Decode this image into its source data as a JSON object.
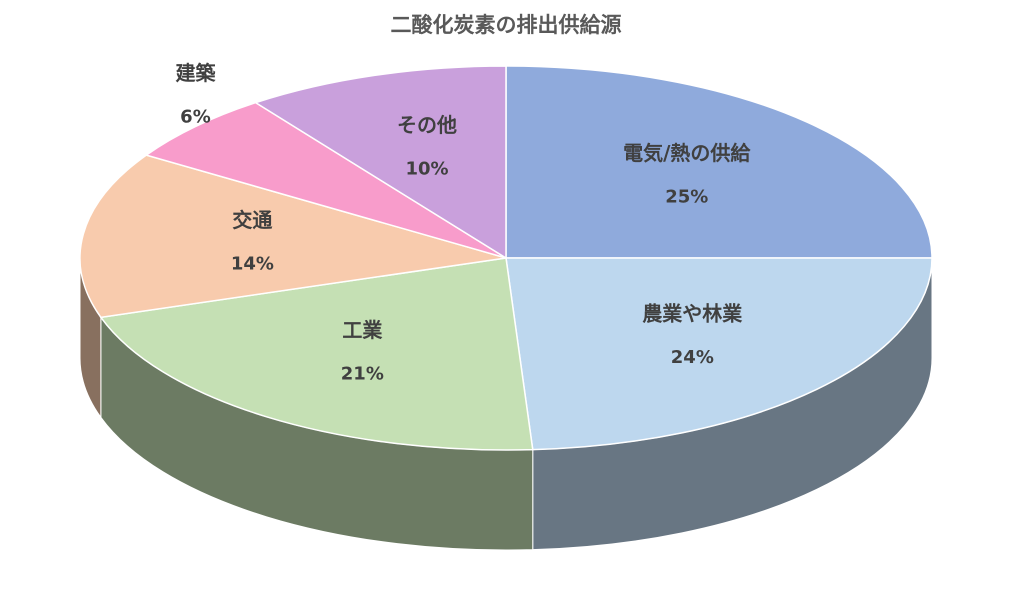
{
  "chart_data": {
    "type": "pie",
    "title": "二酸化炭素の排出供給源",
    "categories": [
      "電気/熱の供給",
      "農業や林業",
      "工業",
      "交通",
      "建築",
      "その他"
    ],
    "values": [
      25,
      24,
      21,
      14,
      6,
      10
    ],
    "value_labels": [
      "25%",
      "24%",
      "21%",
      "14%",
      "6%",
      "10%"
    ],
    "colors": [
      "#8faadc",
      "#bdd7ee",
      "#c5e0b4",
      "#f8cbad",
      "#f89ccb",
      "#c9a0dc"
    ]
  }
}
